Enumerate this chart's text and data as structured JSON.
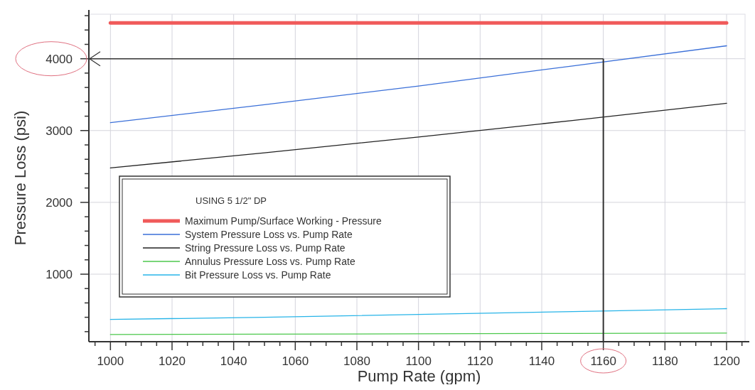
{
  "chart_data": {
    "type": "line",
    "xlabel": "Pump Rate (gpm)",
    "ylabel": "Pressure Loss (psi)",
    "legend_title": "USING 5 1/2\" DP",
    "legend": "left",
    "grid": true,
    "x": [
      1000,
      1050,
      1100,
      1150,
      1200
    ],
    "series": [
      {
        "name": "Maximum Pump/Surface Working - Pressure",
        "color": "#f05a5a",
        "values": [
          4500,
          4500,
          4500,
          4500,
          4500
        ]
      },
      {
        "name": "System Pressure Loss vs. Pump Rate",
        "color": "#3a6fd8",
        "values": [
          3110,
          3360,
          3620,
          3900,
          4180
        ]
      },
      {
        "name": "String Pressure Loss vs. Pump Rate",
        "color": "#222222",
        "values": [
          2480,
          2690,
          2910,
          3140,
          3380
        ]
      },
      {
        "name": "Annulus Pressure Loss vs. Pump Rate",
        "color": "#4cc84c",
        "values": [
          160,
          165,
          170,
          175,
          180
        ]
      },
      {
        "name": "Bit Pressure Loss vs. Pump Rate",
        "color": "#27b4e8",
        "values": [
          370,
          400,
          440,
          480,
          520
        ]
      }
    ],
    "xlim": [
      993,
      1206
    ],
    "xticks": [
      {
        "value": 995,
        "label": null
      },
      1000,
      {
        "value": 1005,
        "label": null
      },
      {
        "value": 1010,
        "label": null
      },
      {
        "value": 1015,
        "label": null
      },
      1020,
      {
        "value": 1025,
        "label": null
      },
      {
        "value": 1030,
        "label": null
      },
      {
        "value": 1035,
        "label": null
      },
      1040,
      {
        "value": 1045,
        "label": null
      },
      {
        "value": 1050,
        "label": null
      },
      {
        "value": 1055,
        "label": null
      },
      1060,
      {
        "value": 1065,
        "label": null
      },
      {
        "value": 1070,
        "label": null
      },
      {
        "value": 1075,
        "label": null
      },
      1080,
      {
        "value": 1085,
        "label": null
      },
      {
        "value": 1090,
        "label": null
      },
      {
        "value": 1095,
        "label": null
      },
      1100,
      {
        "value": 1105,
        "label": null
      },
      {
        "value": 1110,
        "label": null
      },
      {
        "value": 1115,
        "label": null
      },
      1120,
      {
        "value": 1125,
        "label": null
      },
      {
        "value": 1130,
        "label": null
      },
      {
        "value": 1135,
        "label": null
      },
      1140,
      {
        "value": 1145,
        "label": null
      },
      {
        "value": 1150,
        "label": null
      },
      {
        "value": 1155,
        "label": null
      },
      1160,
      {
        "value": 1165,
        "label": null
      },
      {
        "value": 1170,
        "label": null
      },
      {
        "value": 1175,
        "label": null
      },
      1180,
      {
        "value": 1185,
        "label": null
      },
      {
        "value": 1190,
        "label": null
      },
      {
        "value": 1195,
        "label": null
      },
      1200,
      {
        "value": 1205,
        "label": null
      }
    ],
    "ylim": [
      60,
      4620
    ],
    "yticks": [
      {
        "value": 200,
        "label": null
      },
      {
        "value": 400,
        "label": null
      },
      {
        "value": 600,
        "label": null
      },
      {
        "value": 800,
        "label": null
      },
      1000,
      {
        "value": 1200,
        "label": null
      },
      {
        "value": 1400,
        "label": null
      },
      {
        "value": 1600,
        "label": null
      },
      {
        "value": 1800,
        "label": null
      },
      2000,
      {
        "value": 2200,
        "label": null
      },
      {
        "value": 2400,
        "label": null
      },
      {
        "value": 2600,
        "label": null
      },
      {
        "value": 2800,
        "label": null
      },
      3000,
      {
        "value": 3200,
        "label": null
      },
      {
        "value": 3400,
        "label": null
      },
      {
        "value": 3600,
        "label": null
      },
      {
        "value": 3800,
        "label": null
      },
      4000,
      {
        "value": 4200,
        "label": null
      },
      {
        "value": 4400,
        "label": null
      },
      {
        "value": 4600,
        "label": null
      }
    ],
    "ref_lines": [
      {
        "axis": "x",
        "value": 1160,
        "color": "#333333"
      },
      {
        "axis": "y",
        "value": 4000,
        "color": "#333333"
      }
    ]
  }
}
